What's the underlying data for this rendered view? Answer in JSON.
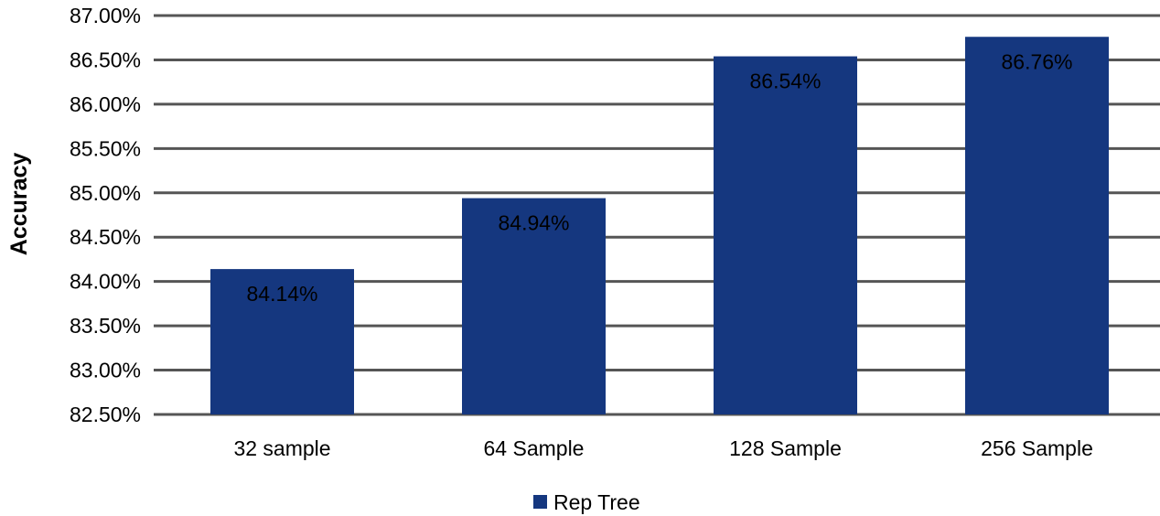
{
  "chart_data": {
    "type": "bar",
    "title": "",
    "xlabel": "",
    "ylabel": "Accuracy",
    "categories": [
      "32 sample",
      "64 Sample",
      "128 Sample",
      "256 Sample"
    ],
    "series": [
      {
        "name": "Rep Tree",
        "values": [
          84.14,
          84.94,
          86.54,
          86.76
        ],
        "color": "#15377f"
      }
    ],
    "data_labels": [
      "84.14%",
      "84.94%",
      "86.54%",
      "86.76%"
    ],
    "ylim": [
      82.5,
      87.0
    ],
    "yticks": [
      82.5,
      83.0,
      83.5,
      84.0,
      84.5,
      85.0,
      85.5,
      86.0,
      86.5,
      87.0
    ],
    "ytick_labels": [
      "82.50%",
      "83.00%",
      "83.50%",
      "84.00%",
      "84.50%",
      "85.00%",
      "85.50%",
      "86.00%",
      "86.50%",
      "87.00%"
    ],
    "grid": true,
    "grid_color": "#555555",
    "legend_position": "bottom"
  }
}
